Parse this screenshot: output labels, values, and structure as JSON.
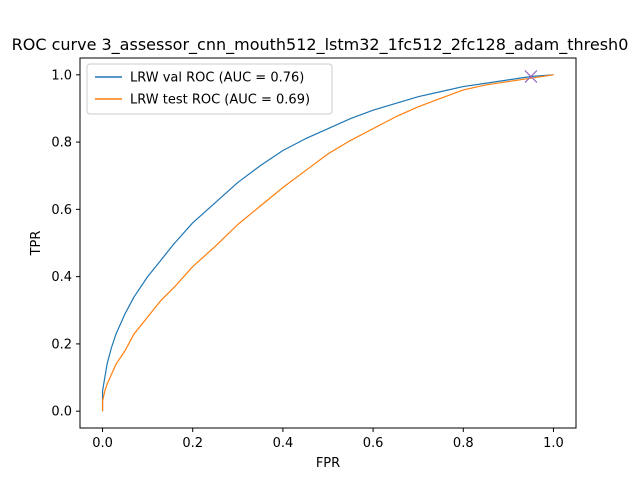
{
  "chart_data": {
    "type": "line",
    "title": "ROC curve 3_assessor_cnn_mouth512_lstm32_1fc512_2fc128_adam_thresh0",
    "xlabel": "FPR",
    "ylabel": "TPR",
    "xlim": [
      -0.05,
      1.05
    ],
    "ylim": [
      -0.05,
      1.05
    ],
    "xticks": [
      "0.0",
      "0.2",
      "0.4",
      "0.6",
      "0.8",
      "1.0"
    ],
    "yticks": [
      "0.0",
      "0.2",
      "0.4",
      "0.6",
      "0.8",
      "1.0"
    ],
    "grid": false,
    "legend": "top-left",
    "series": [
      {
        "name": "LRW val ROC (AUC = 0.76)",
        "color": "#1f77b4",
        "x": [
          0,
          0.0,
          0.005,
          0.01,
          0.02,
          0.03,
          0.05,
          0.07,
          0.1,
          0.13,
          0.16,
          0.2,
          0.25,
          0.3,
          0.35,
          0.4,
          0.45,
          0.5,
          0.55,
          0.6,
          0.65,
          0.7,
          0.75,
          0.8,
          0.85,
          0.9,
          0.95,
          1.0
        ],
        "y": [
          0,
          0.06,
          0.1,
          0.14,
          0.19,
          0.23,
          0.29,
          0.34,
          0.4,
          0.45,
          0.5,
          0.56,
          0.62,
          0.68,
          0.73,
          0.775,
          0.81,
          0.84,
          0.87,
          0.895,
          0.915,
          0.935,
          0.95,
          0.965,
          0.975,
          0.985,
          0.995,
          1.0
        ]
      },
      {
        "name": "LRW test ROC (AUC = 0.69)",
        "color": "#ff7f0e",
        "x": [
          0,
          0.0,
          0.005,
          0.01,
          0.02,
          0.03,
          0.05,
          0.07,
          0.1,
          0.13,
          0.16,
          0.2,
          0.25,
          0.3,
          0.35,
          0.4,
          0.45,
          0.5,
          0.55,
          0.6,
          0.65,
          0.7,
          0.75,
          0.8,
          0.85,
          0.9,
          0.95,
          1.0
        ],
        "y": [
          0,
          0.03,
          0.06,
          0.08,
          0.11,
          0.14,
          0.18,
          0.23,
          0.28,
          0.33,
          0.37,
          0.43,
          0.49,
          0.555,
          0.61,
          0.665,
          0.715,
          0.765,
          0.805,
          0.84,
          0.875,
          0.905,
          0.93,
          0.955,
          0.97,
          0.98,
          0.99,
          1.0
        ]
      }
    ],
    "markers": [
      {
        "x": 0.95,
        "y": 0.995,
        "symbol": "x",
        "color": "#9467bd"
      },
      {
        "x": 0.95,
        "y": 0.995,
        "symbol": "x",
        "color": "#9467bd"
      }
    ]
  }
}
